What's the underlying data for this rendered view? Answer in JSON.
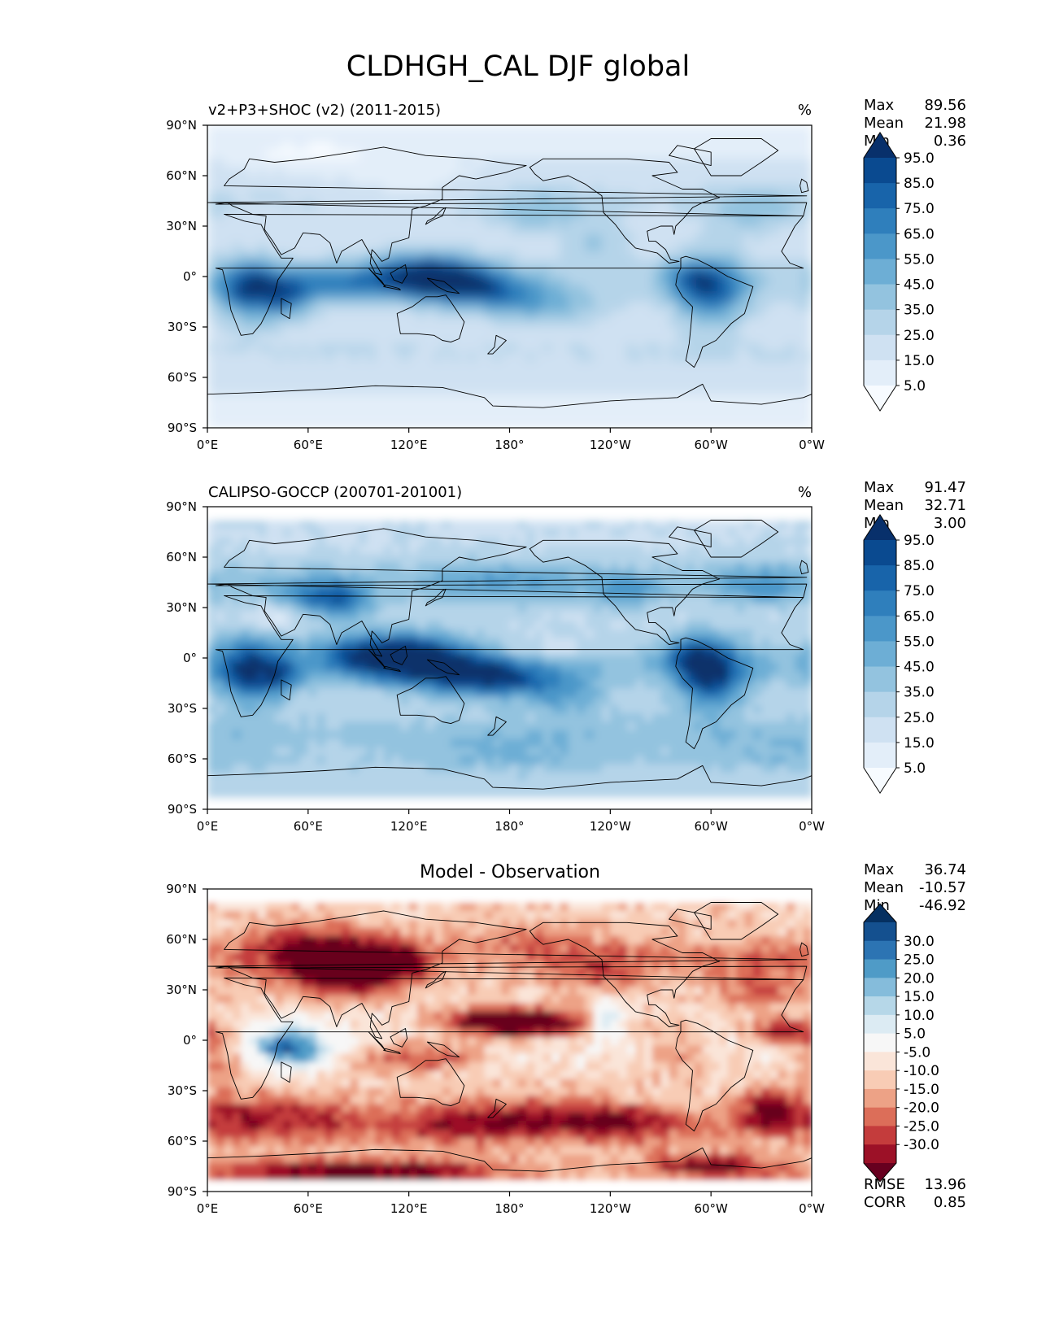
{
  "figure": {
    "title": "CLDHGH_CAL DJF global"
  },
  "chart_data": [
    {
      "type": "heatmap",
      "panel": "test",
      "title": "v2+P3+SHOC (v2) (2011-2015)",
      "units": "%",
      "stats": [
        {
          "label": "Max",
          "value": "89.56"
        },
        {
          "label": "Mean",
          "value": "21.98"
        },
        {
          "label": "Min",
          "value": "0.36"
        }
      ],
      "colorbar": {
        "levels": [
          0,
          10,
          20,
          30,
          40,
          50,
          60,
          70,
          80,
          90,
          100
        ],
        "tick_labels": [
          "5.0",
          "15.0",
          "25.0",
          "35.0",
          "45.0",
          "55.0",
          "65.0",
          "75.0",
          "85.0",
          "95.0"
        ],
        "colors": [
          "#f7fbff",
          "#e3eef9",
          "#cfe1f2",
          "#b5d4e9",
          "#93c3df",
          "#6daed5",
          "#4b97c9",
          "#2f7fbc",
          "#1864aa",
          "#0a4a90",
          "#08306b"
        ],
        "extend": "both"
      },
      "x_ticks": [
        "0°E",
        "60°E",
        "120°E",
        "180°",
        "120°W",
        "60°W",
        "0°W"
      ],
      "y_ticks": [
        "90°N",
        "60°N",
        "30°N",
        "0°",
        "30°S",
        "60°S",
        "90°S"
      ],
      "xlim": [
        0,
        360
      ],
      "ylim": [
        -90,
        90
      ],
      "field_features": [
        {
          "name": "Central Africa convection",
          "lon": 25,
          "lat": -8,
          "value": 70
        },
        {
          "name": "Indian Ocean band",
          "lon": 70,
          "lat": -5,
          "value": 60
        },
        {
          "name": "Maritime continent",
          "lon": 130,
          "lat": 0,
          "value": 75
        },
        {
          "name": "South Pacific convergence",
          "lon": 180,
          "lat": -15,
          "value": 50
        },
        {
          "name": "Amazon convection",
          "lon": 300,
          "lat": -8,
          "value": 75
        },
        {
          "name": "North Pacific storm track",
          "lon": 200,
          "lat": 38,
          "value": 40
        },
        {
          "name": "North Atlantic storm track",
          "lon": 325,
          "lat": 38,
          "value": 40
        }
      ]
    },
    {
      "type": "heatmap",
      "panel": "reference",
      "title": "CALIPSO-GOCCP (200701-201001)",
      "units": "%",
      "stats": [
        {
          "label": "Max",
          "value": "91.47"
        },
        {
          "label": "Mean",
          "value": "32.71"
        },
        {
          "label": "Min",
          "value": "3.00"
        }
      ],
      "colorbar": {
        "levels": [
          0,
          10,
          20,
          30,
          40,
          50,
          60,
          70,
          80,
          90,
          100
        ],
        "tick_labels": [
          "5.0",
          "15.0",
          "25.0",
          "35.0",
          "45.0",
          "55.0",
          "65.0",
          "75.0",
          "85.0",
          "95.0"
        ],
        "colors": [
          "#f7fbff",
          "#e3eef9",
          "#cfe1f2",
          "#b5d4e9",
          "#93c3df",
          "#6daed5",
          "#4b97c9",
          "#2f7fbc",
          "#1864aa",
          "#0a4a90",
          "#08306b"
        ],
        "extend": "both"
      },
      "x_ticks": [
        "0°E",
        "60°E",
        "120°E",
        "180°",
        "120°W",
        "60°W",
        "0°W"
      ],
      "y_ticks": [
        "90°N",
        "60°N",
        "30°N",
        "0°",
        "30°S",
        "60°S",
        "90°S"
      ],
      "xlim": [
        0,
        360
      ],
      "ylim": [
        -90,
        90
      ],
      "data_lat_range": [
        -82,
        82
      ],
      "field_features": [
        {
          "name": "Central Africa convection",
          "lon": 25,
          "lat": -8,
          "value": 75
        },
        {
          "name": "Maritime continent",
          "lon": 120,
          "lat": 0,
          "value": 80
        },
        {
          "name": "South Pacific band",
          "lon": 175,
          "lat": -10,
          "value": 60
        },
        {
          "name": "Amazon convection",
          "lon": 300,
          "lat": -10,
          "value": 85
        },
        {
          "name": "Tibetan plateau",
          "lon": 80,
          "lat": 35,
          "value": 60
        },
        {
          "name": "Southern ocean",
          "lon": 180,
          "lat": -55,
          "value": 45
        }
      ]
    },
    {
      "type": "heatmap",
      "panel": "difference",
      "title": "Model - Observation",
      "stats": [
        {
          "label": "Max",
          "value": "36.74"
        },
        {
          "label": "Mean",
          "value": "-10.57"
        },
        {
          "label": "Min",
          "value": "-46.92"
        }
      ],
      "extra_stats": [
        {
          "label": "RMSE",
          "value": "13.96"
        },
        {
          "label": "CORR",
          "value": "0.85"
        }
      ],
      "colorbar": {
        "levels": [
          -35,
          -30,
          -25,
          -20,
          -15,
          -10,
          -5,
          5,
          10,
          15,
          20,
          25,
          30,
          35
        ],
        "tick_labels": [
          "-30.0",
          "-25.0",
          "-20.0",
          "-15.0",
          "-10.0",
          "-5.0",
          "5.0",
          "10.0",
          "15.0",
          "20.0",
          "25.0",
          "30.0"
        ],
        "colors": [
          "#67001f",
          "#9c1127",
          "#c43c3c",
          "#dc6e59",
          "#eda286",
          "#f8ccb5",
          "#fae5d9",
          "#f7f7f7",
          "#dcebf3",
          "#b6d7e8",
          "#85bcdb",
          "#4f9bc7",
          "#2c74b3",
          "#14508f",
          "#053061"
        ],
        "extend": "both"
      },
      "x_ticks": [
        "0°E",
        "60°E",
        "120°E",
        "180°",
        "120°W",
        "60°W",
        "0°W"
      ],
      "y_ticks": [
        "90°N",
        "60°N",
        "30°N",
        "0°",
        "30°S",
        "60°S",
        "90°S"
      ],
      "xlim": [
        0,
        360
      ],
      "ylim": [
        -90,
        90
      ],
      "data_lat_range": [
        -82,
        82
      ],
      "field_features": [
        {
          "name": "Tibetan plateau deficit",
          "lon": 85,
          "lat": 40,
          "value": -35
        },
        {
          "name": "Central Pacific deficit",
          "lon": 195,
          "lat": 10,
          "value": -40
        },
        {
          "name": "Antarctic coast deficit",
          "lon": 90,
          "lat": -75,
          "value": -35
        },
        {
          "name": "East Africa excess",
          "lon": 50,
          "lat": -5,
          "value": 20
        },
        {
          "name": "Eastern Pacific excess",
          "lon": 235,
          "lat": 15,
          "value": 15
        },
        {
          "name": "Tropical Atlantic deficit",
          "lon": 340,
          "lat": 5,
          "value": -30
        }
      ]
    }
  ]
}
